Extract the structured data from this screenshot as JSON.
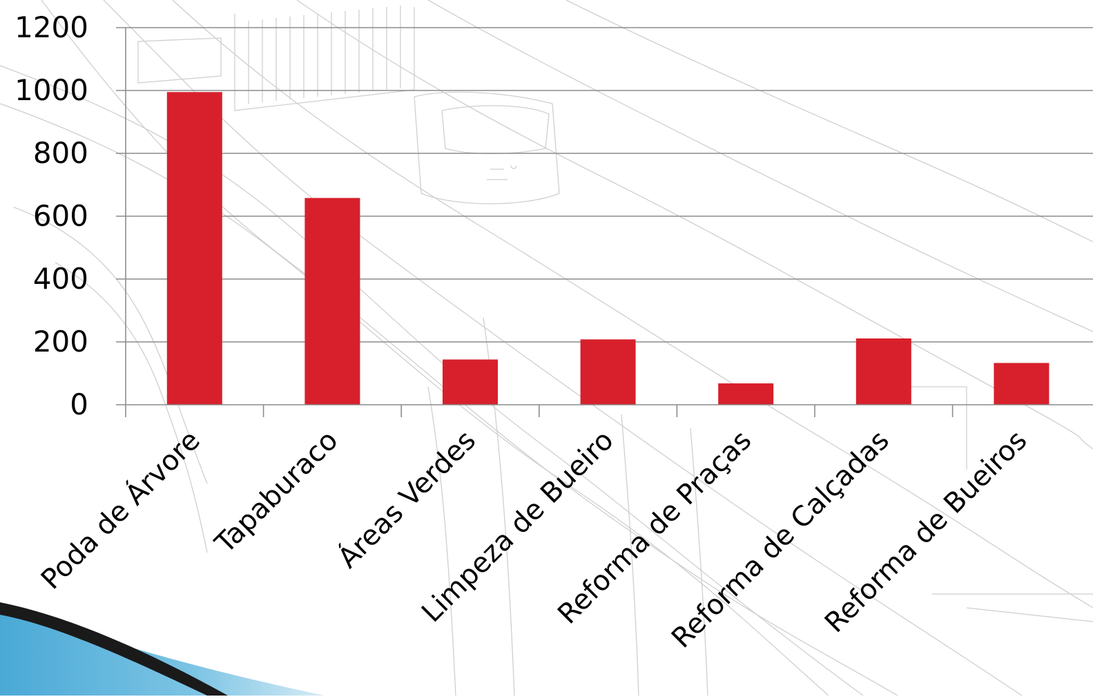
{
  "chart_data": {
    "type": "bar",
    "title": "",
    "xlabel": "",
    "ylabel": "",
    "ylim": [
      0,
      1200
    ],
    "y_ticks": [
      "0",
      "200",
      "400",
      "600",
      "800",
      "1000",
      "1200"
    ],
    "categories": [
      "Poda de Árvore",
      "Tapaburaco",
      "Áreas Verdes",
      "Limpeza de Bueiro",
      "Reforma de Praças",
      "Reforma de Calçadas",
      "Reforma de Bueiros"
    ],
    "values": [
      995,
      658,
      144,
      208,
      68,
      211,
      133
    ],
    "grid": true,
    "legend": "none",
    "bar_color": "#d7202b",
    "grid_color": "#8c8c8c"
  },
  "decor": {
    "background_sketch": "tram-line-drawing",
    "corner_ribbon": "blue-ribbon-bottom-left"
  }
}
